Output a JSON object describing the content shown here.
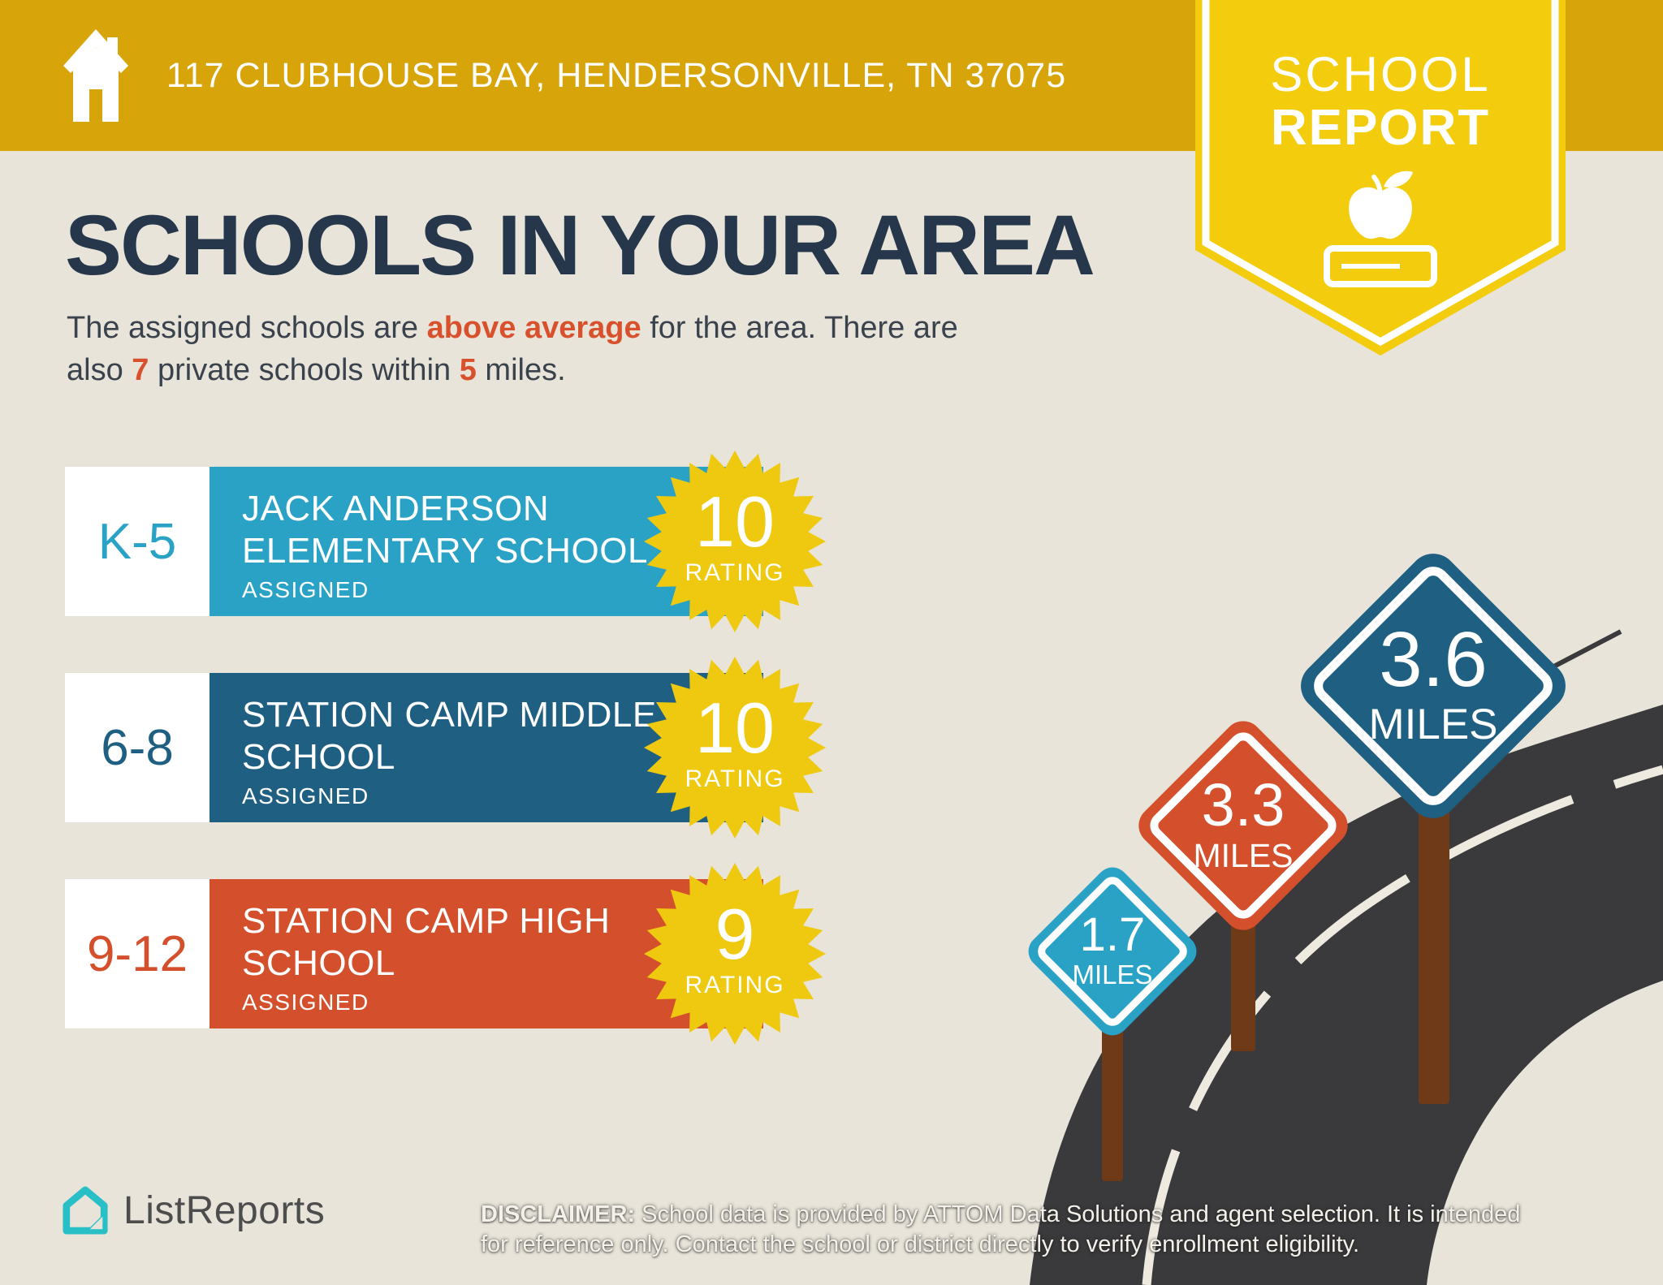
{
  "header": {
    "address": "117 CLUBHOUSE BAY, HENDERSONVILLE, TN 37075",
    "badge": {
      "line1": "SCHOOL",
      "line2": "REPORT"
    }
  },
  "title": "SCHOOLS IN YOUR AREA",
  "intro": {
    "seg1": "The assigned schools are ",
    "highlight1": "above average",
    "seg2": " for the area. There are",
    "seg3": "also ",
    "highlight2": "7",
    "seg4": " private schools within ",
    "highlight3": "5",
    "seg5": " miles."
  },
  "schools": [
    {
      "grade": "K-5",
      "name": "JACK ANDERSON ELEMENTARY SCHOOL",
      "status": "ASSIGNED",
      "rating": "10",
      "rating_label": "RATING",
      "color": "#2AA2C6"
    },
    {
      "grade": "6-8",
      "name": "STATION CAMP MIDDLE SCHOOL",
      "status": "ASSIGNED",
      "rating": "10",
      "rating_label": "RATING",
      "color": "#1E5F82"
    },
    {
      "grade": "9-12",
      "name": "STATION CAMP HIGH SCHOOL",
      "status": "ASSIGNED",
      "rating": "9",
      "rating_label": "RATING",
      "color": "#D4502C"
    }
  ],
  "signs": [
    {
      "distance": "1.7",
      "unit": "MILES",
      "color": "#2AA2C6"
    },
    {
      "distance": "3.3",
      "unit": "MILES",
      "color": "#D4502C"
    },
    {
      "distance": "3.6",
      "unit": "MILES",
      "color": "#1E5F82"
    }
  ],
  "footer": {
    "brand": "ListReports",
    "disclaimer_label": "DISCLAIMER:",
    "disclaimer_text": " School data is provided by ATTOM Data Solutions and agent selection. It is intended for reference only. Contact the school or district directly to verify enrollment eligibility."
  },
  "colors": {
    "banner_gold": "#D7A50A",
    "badge_yellow": "#F3CC0D",
    "starburst_yellow": "#EFC90F",
    "background_beige": "#E8E4D9",
    "title_navy": "#26374B",
    "accent_orange": "#D8512C",
    "teal": "#2AA2C6",
    "dark_blue": "#1E5F82",
    "red_orange": "#D4502C",
    "road_dark": "#3A3A3C",
    "road_line_cream": "#EFEAE0",
    "post_brown": "#6E3A17",
    "logo_teal": "#29BFC6"
  }
}
